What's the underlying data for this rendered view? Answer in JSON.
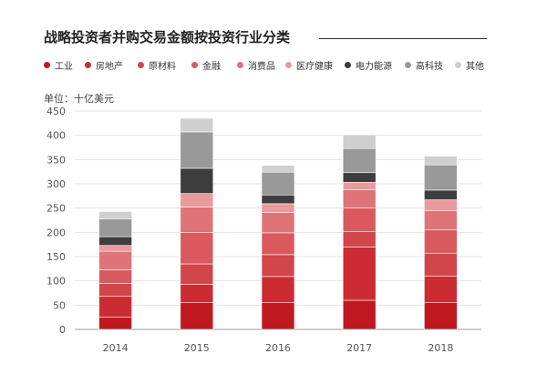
{
  "chart_data": {
    "type": "bar",
    "stacked": true,
    "title": "战略投资者并购交易金额按投资行业分类",
    "unit_label": "单位：十亿美元",
    "xlabel": "",
    "ylabel": "",
    "categories": [
      "2014",
      "2015",
      "2016",
      "2017",
      "2018"
    ],
    "ylim": [
      0,
      450
    ],
    "yticks": [
      0,
      50,
      100,
      150,
      200,
      250,
      300,
      350,
      400,
      450
    ],
    "grid": true,
    "legend_position": "top",
    "series": [
      {
        "name": "工业",
        "color": "#c0181f",
        "values": [
          25,
          55,
          55,
          60,
          55
        ]
      },
      {
        "name": "房地产",
        "color": "#cb2c33",
        "values": [
          43,
          38,
          54,
          110,
          55
        ]
      },
      {
        "name": "原材料",
        "color": "#d2454b",
        "values": [
          27,
          42,
          45,
          32,
          47
        ]
      },
      {
        "name": "金融",
        "color": "#d9595e",
        "values": [
          28,
          65,
          45,
          48,
          48
        ]
      },
      {
        "name": "消费品",
        "color": "#df7478",
        "values": [
          38,
          52,
          42,
          38,
          40
        ]
      },
      {
        "name": "医疗健康",
        "color": "#e99a9c",
        "values": [
          12,
          28,
          18,
          15,
          22
        ]
      },
      {
        "name": "电力能源",
        "color": "#3d3d3d",
        "values": [
          18,
          52,
          18,
          20,
          20
        ]
      },
      {
        "name": "高科技",
        "color": "#999999",
        "values": [
          37,
          75,
          47,
          50,
          52
        ]
      },
      {
        "name": "其他",
        "color": "#cfcfcf",
        "values": [
          15,
          28,
          14,
          28,
          18
        ]
      }
    ]
  }
}
